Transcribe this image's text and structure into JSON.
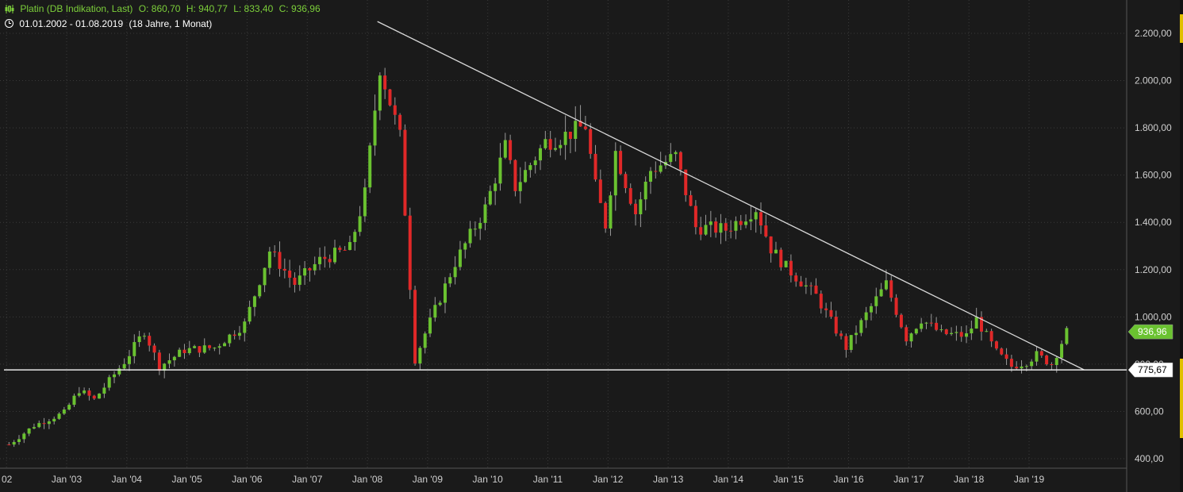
{
  "header": {
    "title": "Platin (DB Indikation, Last)",
    "open": "O: 860,70",
    "high": "H: 940,77",
    "low": "L: 833,40",
    "close": "C: 936,96",
    "date_range": "01.01.2002 - 01.08.2019",
    "duration": "(18 Jahre, 1 Monat)"
  },
  "colors": {
    "background": "#1a1a1a",
    "up": "#6ac230",
    "down": "#e02828",
    "grid": "#3a3a3a",
    "line": "#d8d8d8",
    "scrollbar_thumb": "#e0c000"
  },
  "chart_data": {
    "type": "candlestick",
    "title": "Platin (DB Indikation, Last)",
    "xlabel": "",
    "ylabel": "",
    "x_range": [
      "2002-01",
      "2019-08"
    ],
    "ylim": [
      350,
      2330
    ],
    "y_ticks": [
      400,
      600,
      800,
      1000,
      1200,
      1400,
      1600,
      1800,
      2000,
      2200
    ],
    "y_tick_labels": [
      "400,00",
      "600,00",
      "800,00",
      "1.000,00",
      "1.200,00",
      "1.400,00",
      "1.600,00",
      "1.800,00",
      "2.000,00",
      "2.200,00"
    ],
    "x_ticks": [
      "2002-01",
      "2003-01",
      "2004-01",
      "2005-01",
      "2006-01",
      "2007-01",
      "2008-01",
      "2009-01",
      "2010-01",
      "2011-01",
      "2012-01",
      "2013-01",
      "2014-01",
      "2015-01",
      "2016-01",
      "2017-01",
      "2018-01",
      "2019-01"
    ],
    "x_tick_labels": [
      "02",
      "Jan '03",
      "Jan '04",
      "Jan '05",
      "Jan '06",
      "Jan '07",
      "Jan '08",
      "Jan '09",
      "Jan '10",
      "Jan '11",
      "Jan '12",
      "Jan '13",
      "Jan '14",
      "Jan '15",
      "Jan '16",
      "Jan '17",
      "Jan '18",
      "Jan '19"
    ],
    "grid": true,
    "price_path": [
      [
        "2002-01",
        460
      ],
      [
        "2002-06",
        540
      ],
      [
        "2002-12",
        595
      ],
      [
        "2003-03",
        690
      ],
      [
        "2003-06",
        650
      ],
      [
        "2003-12",
        810
      ],
      [
        "2004-04",
        940
      ],
      [
        "2004-07",
        790
      ],
      [
        "2004-12",
        860
      ],
      [
        "2005-06",
        870
      ],
      [
        "2005-12",
        970
      ],
      [
        "2006-05",
        1280
      ],
      [
        "2006-10",
        1140
      ],
      [
        "2007-03",
        1240
      ],
      [
        "2007-09",
        1290
      ],
      [
        "2007-12",
        1520
      ],
      [
        "2008-03",
        2060
      ],
      [
        "2008-07",
        1760
      ],
      [
        "2008-10",
        820
      ],
      [
        "2008-12",
        930
      ],
      [
        "2009-06",
        1230
      ],
      [
        "2009-12",
        1460
      ],
      [
        "2010-04",
        1720
      ],
      [
        "2010-06",
        1550
      ],
      [
        "2010-12",
        1740
      ],
      [
        "2011-03",
        1760
      ],
      [
        "2011-08",
        1810
      ],
      [
        "2011-10",
        1550
      ],
      [
        "2011-12",
        1390
      ],
      [
        "2012-02",
        1700
      ],
      [
        "2012-06",
        1440
      ],
      [
        "2012-09",
        1620
      ],
      [
        "2013-02",
        1680
      ],
      [
        "2013-06",
        1380
      ],
      [
        "2013-12",
        1370
      ],
      [
        "2014-06",
        1460
      ],
      [
        "2014-09",
        1290
      ],
      [
        "2014-12",
        1210
      ],
      [
        "2015-06",
        1090
      ],
      [
        "2015-12",
        870
      ],
      [
        "2016-04",
        1010
      ],
      [
        "2016-08",
        1140
      ],
      [
        "2016-12",
        910
      ],
      [
        "2017-03",
        990
      ],
      [
        "2017-07",
        930
      ],
      [
        "2017-12",
        920
      ],
      [
        "2018-02",
        990
      ],
      [
        "2018-06",
        850
      ],
      [
        "2018-09",
        790
      ],
      [
        "2018-12",
        810
      ],
      [
        "2019-02",
        840
      ],
      [
        "2019-05",
        800
      ],
      [
        "2019-08",
        937
      ]
    ],
    "trendline": {
      "start": [
        "2008-03",
        2250
      ],
      "end": [
        "2019-12",
        775.67
      ]
    },
    "support_line": {
      "value": 775.67,
      "label": "775,67"
    },
    "last_price": {
      "value": 936.96,
      "label": "936,96"
    }
  }
}
